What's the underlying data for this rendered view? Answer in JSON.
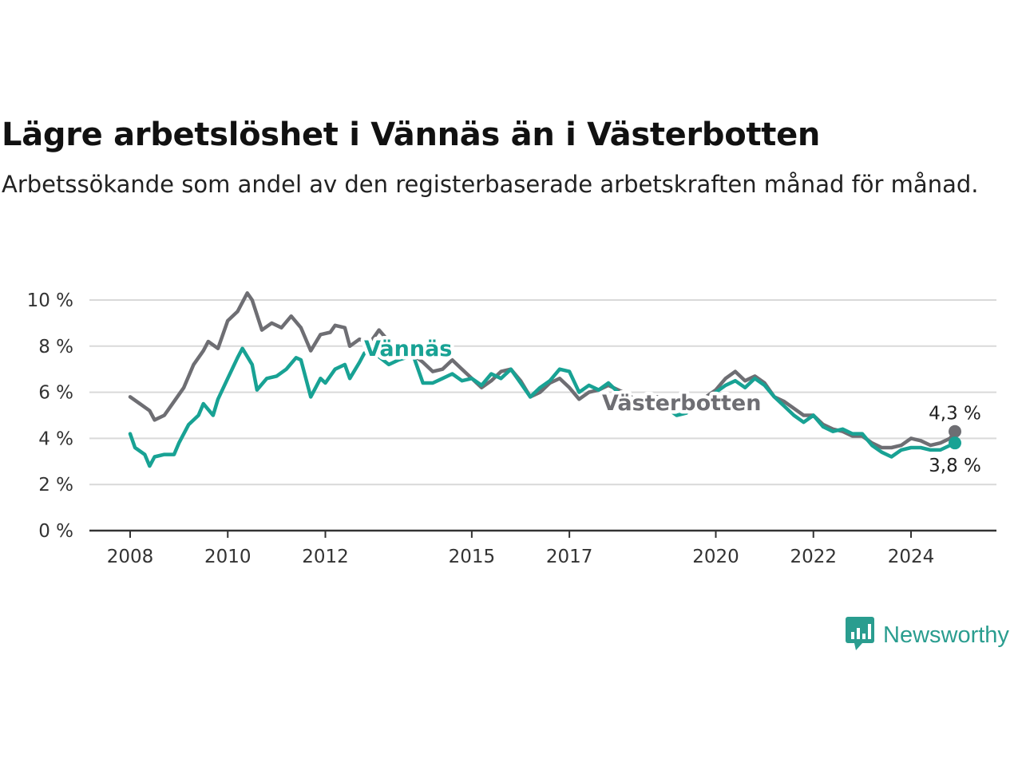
{
  "title": "Lägre arbetslöshet i Vännäs än i Västerbotten",
  "subtitle": "Arbetssökande som andel av den registerbaserade arbetskraften månad för månad.",
  "brand": "Newsworthy",
  "colors": {
    "vannas": "#18a294",
    "vasterbotten": "#6e6e73",
    "grid": "#d9d9d9",
    "axis": "#333333"
  },
  "chart_data": {
    "type": "line",
    "title": "Lägre arbetslöshet i Vännäs än i Västerbotten",
    "xlim": [
      2008,
      2025.3
    ],
    "ylim": [
      0,
      10
    ],
    "y_ticks": [
      0,
      2,
      4,
      6,
      8,
      10
    ],
    "y_tick_labels": [
      "0 %",
      "2 %",
      "4 %",
      "6 %",
      "8 %",
      "10 %"
    ],
    "x_ticks": [
      2008,
      2010,
      2012,
      2015,
      2017,
      2020,
      2022,
      2024
    ],
    "x_tick_labels": [
      "2008",
      "2010",
      "2012",
      "2015",
      "2017",
      "2020",
      "2022",
      "2024"
    ],
    "grid": true,
    "series": [
      {
        "name": "Västerbotten",
        "color": "#6e6e73",
        "label_at": [
          2013.5,
          7.5
        ],
        "end_label": "4,3 %",
        "points": [
          [
            2008.0,
            5.8
          ],
          [
            2008.2,
            5.5
          ],
          [
            2008.4,
            5.2
          ],
          [
            2008.5,
            4.8
          ],
          [
            2008.7,
            5.0
          ],
          [
            2008.9,
            5.6
          ],
          [
            2009.1,
            6.2
          ],
          [
            2009.3,
            7.2
          ],
          [
            2009.5,
            7.8
          ],
          [
            2009.6,
            8.2
          ],
          [
            2009.8,
            7.9
          ],
          [
            2010.0,
            9.1
          ],
          [
            2010.2,
            9.5
          ],
          [
            2010.4,
            10.3
          ],
          [
            2010.5,
            10.0
          ],
          [
            2010.7,
            8.7
          ],
          [
            2010.9,
            9.0
          ],
          [
            2011.1,
            8.8
          ],
          [
            2011.3,
            9.3
          ],
          [
            2011.5,
            8.8
          ],
          [
            2011.7,
            7.8
          ],
          [
            2011.9,
            8.5
          ],
          [
            2012.1,
            8.6
          ],
          [
            2012.2,
            8.9
          ],
          [
            2012.4,
            8.8
          ],
          [
            2012.5,
            8.0
          ],
          [
            2012.7,
            8.3
          ],
          [
            2012.9,
            8.1
          ],
          [
            2013.1,
            8.7
          ],
          [
            2013.3,
            8.2
          ],
          [
            2013.5,
            7.6
          ],
          [
            2013.7,
            7.8
          ],
          [
            2014.0,
            7.3
          ],
          [
            2014.2,
            6.9
          ],
          [
            2014.4,
            7.0
          ],
          [
            2014.6,
            7.4
          ],
          [
            2014.8,
            7.0
          ],
          [
            2015.0,
            6.6
          ],
          [
            2015.2,
            6.2
          ],
          [
            2015.4,
            6.5
          ],
          [
            2015.6,
            6.9
          ],
          [
            2015.8,
            7.0
          ],
          [
            2016.0,
            6.5
          ],
          [
            2016.2,
            5.8
          ],
          [
            2016.4,
            6.0
          ],
          [
            2016.6,
            6.4
          ],
          [
            2016.8,
            6.6
          ],
          [
            2017.0,
            6.2
          ],
          [
            2017.2,
            5.7
          ],
          [
            2017.4,
            6.0
          ],
          [
            2017.6,
            6.1
          ],
          [
            2017.8,
            6.3
          ],
          [
            2018.0,
            6.1
          ],
          [
            2018.2,
            5.9
          ],
          [
            2018.4,
            5.6
          ],
          [
            2018.6,
            5.7
          ],
          [
            2018.8,
            5.8
          ],
          [
            2019.0,
            5.5
          ],
          [
            2019.2,
            5.3
          ],
          [
            2019.4,
            5.2
          ],
          [
            2019.6,
            5.5
          ],
          [
            2019.8,
            5.8
          ],
          [
            2020.0,
            6.1
          ],
          [
            2020.2,
            6.6
          ],
          [
            2020.4,
            6.9
          ],
          [
            2020.6,
            6.5
          ],
          [
            2020.8,
            6.7
          ],
          [
            2021.0,
            6.4
          ],
          [
            2021.2,
            5.8
          ],
          [
            2021.4,
            5.6
          ],
          [
            2021.6,
            5.3
          ],
          [
            2021.8,
            5.0
          ],
          [
            2022.0,
            5.0
          ],
          [
            2022.2,
            4.6
          ],
          [
            2022.4,
            4.4
          ],
          [
            2022.6,
            4.3
          ],
          [
            2022.8,
            4.1
          ],
          [
            2023.0,
            4.1
          ],
          [
            2023.2,
            3.8
          ],
          [
            2023.4,
            3.6
          ],
          [
            2023.6,
            3.6
          ],
          [
            2023.8,
            3.7
          ],
          [
            2024.0,
            4.0
          ],
          [
            2024.2,
            3.9
          ],
          [
            2024.4,
            3.7
          ],
          [
            2024.6,
            3.8
          ],
          [
            2024.8,
            4.0
          ],
          [
            2024.9,
            4.3
          ]
        ]
      },
      {
        "name": "Vännäs",
        "color": "#18a294",
        "label_at": [
          2012.8,
          7.6
        ],
        "end_label": "3,8 %",
        "points": [
          [
            2008.0,
            4.2
          ],
          [
            2008.1,
            3.6
          ],
          [
            2008.3,
            3.3
          ],
          [
            2008.4,
            2.8
          ],
          [
            2008.5,
            3.2
          ],
          [
            2008.7,
            3.3
          ],
          [
            2008.9,
            3.3
          ],
          [
            2009.0,
            3.8
          ],
          [
            2009.2,
            4.6
          ],
          [
            2009.4,
            5.0
          ],
          [
            2009.5,
            5.5
          ],
          [
            2009.7,
            5.0
          ],
          [
            2009.8,
            5.7
          ],
          [
            2010.0,
            6.6
          ],
          [
            2010.2,
            7.5
          ],
          [
            2010.3,
            7.9
          ],
          [
            2010.5,
            7.2
          ],
          [
            2010.6,
            6.1
          ],
          [
            2010.8,
            6.6
          ],
          [
            2011.0,
            6.7
          ],
          [
            2011.2,
            7.0
          ],
          [
            2011.4,
            7.5
          ],
          [
            2011.5,
            7.4
          ],
          [
            2011.7,
            5.8
          ],
          [
            2011.9,
            6.6
          ],
          [
            2012.0,
            6.4
          ],
          [
            2012.2,
            7.0
          ],
          [
            2012.4,
            7.2
          ],
          [
            2012.5,
            6.6
          ],
          [
            2012.7,
            7.3
          ],
          [
            2012.8,
            7.7
          ],
          [
            2013.0,
            7.7
          ],
          [
            2013.3,
            7.2
          ],
          [
            2013.5,
            7.4
          ],
          [
            2013.8,
            7.6
          ],
          [
            2014.0,
            6.4
          ],
          [
            2014.2,
            6.4
          ],
          [
            2014.4,
            6.6
          ],
          [
            2014.6,
            6.8
          ],
          [
            2014.8,
            6.5
          ],
          [
            2015.0,
            6.6
          ],
          [
            2015.2,
            6.3
          ],
          [
            2015.4,
            6.8
          ],
          [
            2015.6,
            6.6
          ],
          [
            2015.8,
            7.0
          ],
          [
            2016.0,
            6.4
          ],
          [
            2016.2,
            5.8
          ],
          [
            2016.4,
            6.2
          ],
          [
            2016.6,
            6.5
          ],
          [
            2016.8,
            7.0
          ],
          [
            2017.0,
            6.9
          ],
          [
            2017.2,
            6.0
          ],
          [
            2017.4,
            6.3
          ],
          [
            2017.6,
            6.1
          ],
          [
            2017.8,
            6.4
          ],
          [
            2018.0,
            6.0
          ],
          [
            2018.2,
            5.8
          ],
          [
            2018.4,
            5.6
          ],
          [
            2018.6,
            5.4
          ],
          [
            2018.8,
            5.5
          ],
          [
            2019.0,
            5.3
          ],
          [
            2019.2,
            5.0
          ],
          [
            2019.4,
            5.1
          ],
          [
            2019.6,
            5.4
          ],
          [
            2019.8,
            5.6
          ],
          [
            2020.0,
            6.0
          ],
          [
            2020.2,
            6.3
          ],
          [
            2020.4,
            6.5
          ],
          [
            2020.6,
            6.2
          ],
          [
            2020.8,
            6.6
          ],
          [
            2021.0,
            6.3
          ],
          [
            2021.2,
            5.8
          ],
          [
            2021.4,
            5.4
          ],
          [
            2021.6,
            5.0
          ],
          [
            2021.8,
            4.7
          ],
          [
            2022.0,
            5.0
          ],
          [
            2022.2,
            4.5
          ],
          [
            2022.4,
            4.3
          ],
          [
            2022.6,
            4.4
          ],
          [
            2022.8,
            4.2
          ],
          [
            2023.0,
            4.2
          ],
          [
            2023.2,
            3.7
          ],
          [
            2023.4,
            3.4
          ],
          [
            2023.6,
            3.2
          ],
          [
            2023.8,
            3.5
          ],
          [
            2024.0,
            3.6
          ],
          [
            2024.2,
            3.6
          ],
          [
            2024.4,
            3.5
          ],
          [
            2024.6,
            3.5
          ],
          [
            2024.8,
            3.7
          ],
          [
            2024.9,
            3.8
          ]
        ]
      }
    ]
  }
}
